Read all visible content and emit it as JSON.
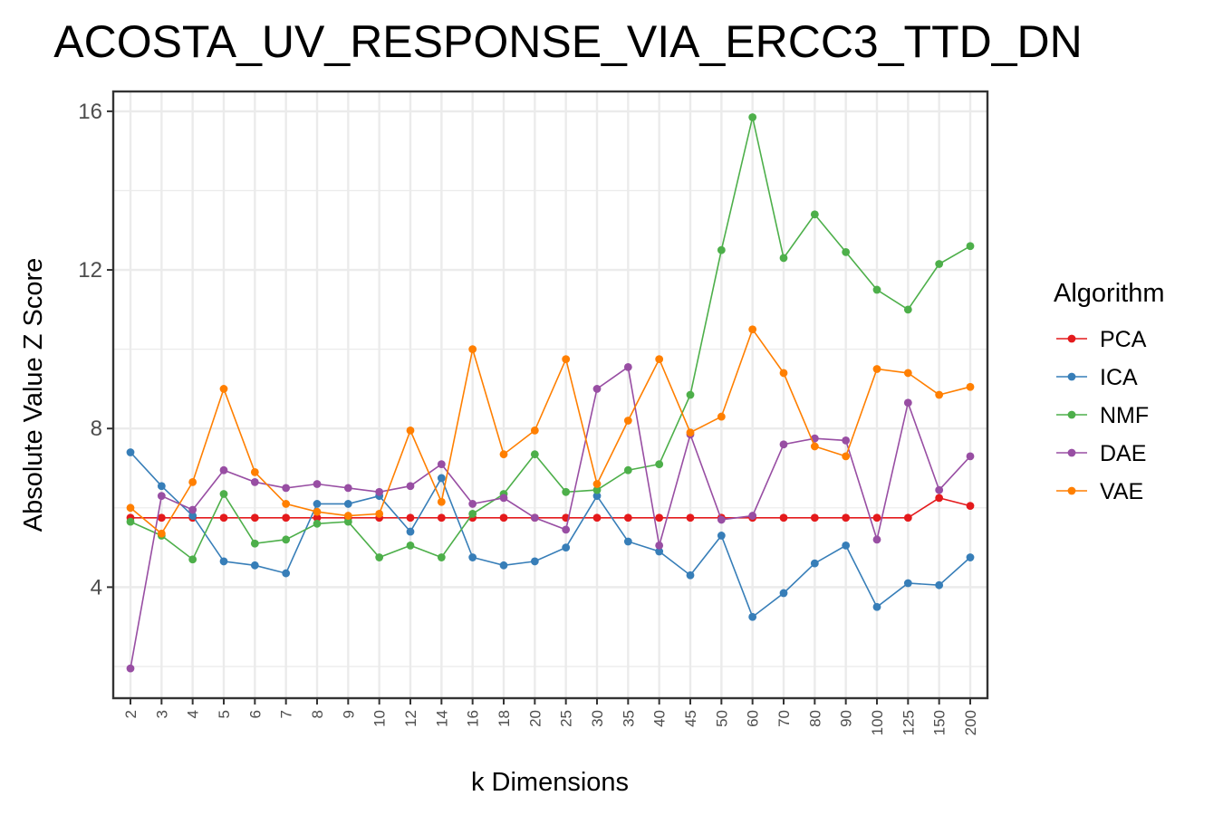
{
  "chart_data": {
    "type": "line",
    "title": "ACOSTA_UV_RESPONSE_VIA_ERCC3_TTD_DN",
    "xlabel": "k Dimensions",
    "ylabel": "Absolute Value Z Score",
    "categories": [
      "2",
      "3",
      "4",
      "5",
      "6",
      "7",
      "8",
      "9",
      "10",
      "12",
      "14",
      "16",
      "18",
      "20",
      "25",
      "30",
      "35",
      "40",
      "45",
      "50",
      "60",
      "70",
      "80",
      "90",
      "100",
      "125",
      "150",
      "200"
    ],
    "ylim": [
      1.2,
      16.5
    ],
    "yticks": [
      4,
      8,
      12,
      16
    ],
    "ytick_labels": [
      "4",
      "8",
      "12",
      "16"
    ],
    "grid": true,
    "legend": {
      "title": "Algorithm",
      "position": "right"
    },
    "series": [
      {
        "name": "PCA",
        "color": "#e41a1c",
        "values": [
          5.75,
          5.75,
          5.75,
          5.75,
          5.75,
          5.75,
          5.75,
          5.75,
          5.75,
          5.75,
          5.75,
          5.75,
          5.75,
          5.75,
          5.75,
          5.75,
          5.75,
          5.75,
          5.75,
          5.75,
          5.75,
          5.75,
          5.75,
          5.75,
          5.75,
          5.75,
          6.25,
          6.05
        ]
      },
      {
        "name": "ICA",
        "color": "#377eb8",
        "values": [
          7.4,
          6.55,
          5.8,
          4.65,
          4.55,
          4.35,
          6.1,
          6.1,
          6.3,
          5.4,
          6.75,
          4.75,
          4.55,
          4.65,
          5.0,
          6.3,
          5.15,
          4.9,
          4.3,
          5.3,
          3.25,
          3.85,
          4.6,
          5.05,
          3.5,
          4.1,
          4.05,
          4.75
        ]
      },
      {
        "name": "NMF",
        "color": "#4daf4a",
        "values": [
          5.65,
          5.3,
          4.7,
          6.35,
          5.1,
          5.2,
          5.6,
          5.65,
          4.75,
          5.05,
          4.75,
          5.85,
          6.35,
          7.35,
          6.4,
          6.45,
          6.95,
          7.1,
          8.85,
          12.5,
          15.85,
          12.3,
          13.4,
          12.45,
          11.5,
          11.0,
          12.15,
          12.6
        ]
      },
      {
        "name": "DAE",
        "color": "#984ea3",
        "values": [
          1.95,
          6.3,
          5.95,
          6.95,
          6.65,
          6.5,
          6.6,
          6.5,
          6.4,
          6.55,
          7.1,
          6.1,
          6.25,
          5.75,
          5.45,
          9.0,
          9.55,
          5.05,
          7.85,
          5.7,
          5.8,
          7.6,
          7.75,
          7.7,
          5.2,
          8.65,
          6.45,
          7.3
        ]
      },
      {
        "name": "VAE",
        "color": "#ff7f00",
        "values": [
          6.0,
          5.35,
          6.65,
          9.0,
          6.9,
          6.1,
          5.9,
          5.8,
          5.85,
          7.95,
          6.15,
          10.0,
          7.35,
          7.95,
          9.75,
          6.6,
          8.2,
          9.75,
          7.9,
          8.3,
          10.5,
          9.4,
          7.55,
          7.3,
          9.5,
          9.4,
          8.85,
          9.05
        ]
      }
    ]
  }
}
